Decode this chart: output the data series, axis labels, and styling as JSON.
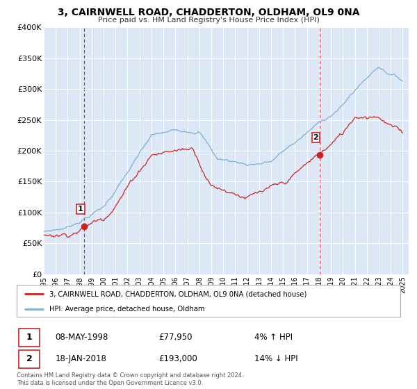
{
  "title": "3, CAIRNWELL ROAD, CHADDERTON, OLDHAM, OL9 0NA",
  "subtitle": "Price paid vs. HM Land Registry's House Price Index (HPI)",
  "sale1_date": "08-MAY-1998",
  "sale1_price": 77950,
  "sale1_label": "4% ↑ HPI",
  "sale2_date": "18-JAN-2018",
  "sale2_price": 193000,
  "sale2_label": "14% ↓ HPI",
  "legend1": "3, CAIRNWELL ROAD, CHADDERTON, OLDHAM, OL9 0NA (detached house)",
  "legend2": "HPI: Average price, detached house, Oldham",
  "footer": "Contains HM Land Registry data © Crown copyright and database right 2024.\nThis data is licensed under the Open Government Licence v3.0.",
  "hpi_color": "#7bafd4",
  "price_color": "#cc2222",
  "vline_color": "#cc2222",
  "bg_color": "#dce8f5",
  "ylim": [
    0,
    400000
  ],
  "yticks": [
    0,
    50000,
    100000,
    150000,
    200000,
    250000,
    300000,
    350000,
    400000
  ],
  "ytick_labels": [
    "£0",
    "£50K",
    "£100K",
    "£150K",
    "£200K",
    "£250K",
    "£300K",
    "£350K",
    "£400K"
  ],
  "sale1_x": 1998.37,
  "sale2_x": 2018.04
}
